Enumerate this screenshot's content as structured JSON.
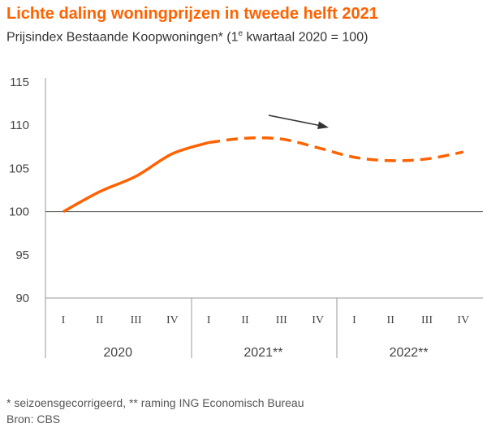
{
  "title": "Lichte daling woningprijzen in tweede helft 2021",
  "subtitle_main": "Prijsindex Bestaande Koopwoningen* (1",
  "subtitle_sup": "e",
  "subtitle_rest": " kwartaal 2020 = 100)",
  "footnote": "* seizoensgecorrigeerd, ** raming ING Economisch Bureau",
  "source": "Bron: CBS",
  "chart_data": {
    "type": "line",
    "title": "Lichte daling woningprijzen in tweede helft 2021",
    "ylim": [
      90,
      115
    ],
    "yticks": [
      "115",
      "110",
      "105",
      "100",
      "95",
      "90"
    ],
    "yticks_values": [
      115,
      110,
      105,
      100,
      95,
      90
    ],
    "quarters": [
      "I",
      "II",
      "III",
      "IV",
      "I",
      "II",
      "III",
      "IV",
      "I",
      "II",
      "III",
      "IV"
    ],
    "years": [
      "2020",
      "2021**",
      "2022**"
    ],
    "series": [
      {
        "style": "solid",
        "x": [
          0,
          1,
          2,
          3,
          4
        ],
        "values": [
          100.0,
          102.3,
          104.1,
          106.7,
          108.0
        ]
      },
      {
        "style": "dashed",
        "x": [
          4,
          5,
          6,
          7,
          8,
          9,
          10,
          11
        ],
        "values": [
          108.0,
          108.5,
          108.4,
          107.4,
          106.3,
          105.9,
          106.1,
          106.9
        ]
      }
    ],
    "annotation": "arrow-down-trend",
    "colors": {
      "line": "#ff6200",
      "axis": "#999999",
      "text": "#333333",
      "title": "#ff6200"
    },
    "grid": false
  }
}
